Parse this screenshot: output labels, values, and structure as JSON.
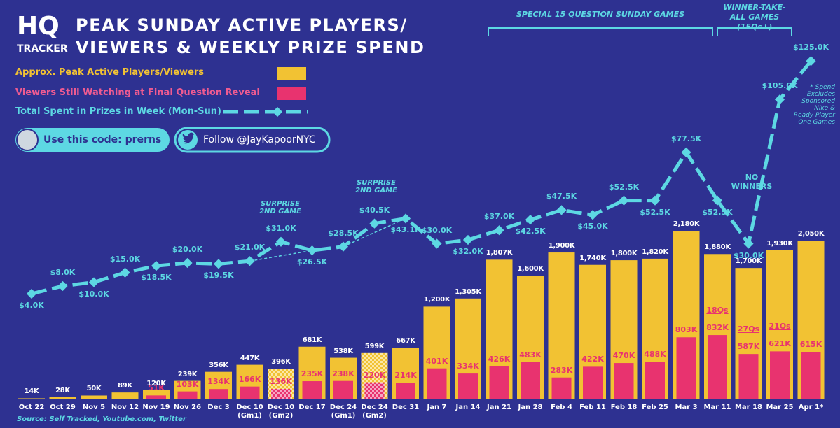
{
  "brand": {
    "logo": "HQ",
    "subtitle": "TRACKER"
  },
  "promo": {
    "code": "Use this code: prerns",
    "follow": "Follow @JayKapoorNYC"
  },
  "chart_data": {
    "type": "bar-line",
    "title": [
      "PEAK SUNDAY ACTIVE PLAYERS/",
      "VIEWERS & WEEKLY PRIZE SPEND"
    ],
    "categories": [
      "Oct 22",
      "Oct 29",
      "Nov 5",
      "Nov 12",
      "Nov 19",
      "Nov 26",
      "Dec 3",
      "Dec 10 (Gm1)",
      "Dec 10 (Gm2)",
      "Dec 17",
      "Dec 24 (Gm1)",
      "Dec 24 (Gm2)",
      "Dec 31",
      "Jan 7",
      "Jan 14",
      "Jan 21",
      "Jan 28",
      "Feb 4",
      "Feb 11",
      "Feb 18",
      "Feb 25",
      "Mar 3",
      "Mar 11",
      "Mar 18",
      "Mar 25",
      "Apr 1*"
    ],
    "series": [
      {
        "name": "Approx. Peak Active Players/Viewers",
        "color": "#f2c233",
        "values": [
          14,
          28,
          50,
          89,
          120,
          239,
          356,
          447,
          396,
          681,
          538,
          599,
          667,
          1200,
          1305,
          1807,
          1600,
          1900,
          1740,
          1800,
          1820,
          2180,
          1880,
          1700,
          1930,
          2050
        ],
        "value_labels": [
          "14K",
          "28K",
          "50K",
          "89K",
          "120K",
          "239K",
          "356K",
          "447K",
          "396K",
          "681K",
          "538K",
          "599K",
          "667K",
          "1,200K",
          "1,305K",
          "1,807K",
          "1,600K",
          "1,900K",
          "1,740K",
          "1,800K",
          "1,820K",
          "2,180K",
          "1,880K",
          "1,700K",
          "1,930K",
          "2,050K"
        ]
      },
      {
        "name": "Viewers Still Watching at Final Question Reveal",
        "color": "#e8336f",
        "values": [
          null,
          null,
          null,
          null,
          51,
          103,
          134,
          166,
          136,
          235,
          238,
          220,
          214,
          401,
          334,
          426,
          483,
          283,
          422,
          470,
          488,
          803,
          832,
          587,
          621,
          615
        ],
        "value_labels": [
          null,
          null,
          null,
          null,
          "51K",
          "103K",
          "134K",
          "166K",
          "136K",
          "235K",
          "238K",
          "220K",
          "214K",
          "401K",
          "334K",
          "426K",
          "483K",
          "283K",
          "422K",
          "470K",
          "488K",
          "803K",
          "832K",
          "587K",
          "621K",
          "615K"
        ]
      },
      {
        "name": "Total Spent in Prizes in Week (Mon-Sun)",
        "color": "#5dd8e3",
        "values": [
          4.0,
          8.0,
          10.0,
          15.0,
          18.5,
          20.0,
          19.5,
          21.0,
          31.0,
          26.5,
          28.5,
          40.5,
          43.1,
          30.0,
          32.0,
          37.0,
          42.5,
          47.5,
          45.0,
          52.5,
          52.5,
          77.5,
          52.5,
          30.0,
          105.0,
          125.0
        ],
        "value_labels": [
          "$4.0K",
          "$8.0K",
          "$10.0K",
          "$15.0K",
          "$18.5K",
          "$20.0K",
          "$19.5K",
          "$21.0K",
          "$31.0K",
          "$26.5K",
          "$28.5K",
          "$40.5K",
          "$43.1K",
          "$30.0K",
          "$32.0K",
          "$37.0K",
          "$42.5K",
          "$47.5K",
          "$45.0K",
          "$52.5K",
          "$52.5K",
          "$77.5K",
          "$52.5K",
          "$30.0K",
          "$105.0K",
          "$125.0K"
        ]
      }
    ],
    "question_labels": [
      null,
      null,
      null,
      null,
      null,
      null,
      null,
      null,
      null,
      null,
      null,
      null,
      null,
      null,
      null,
      null,
      null,
      null,
      null,
      null,
      null,
      null,
      "18Qs",
      "27Qs",
      "21Qs",
      null
    ],
    "annotations": {
      "special_games": "SPECIAL 15 QUESTION SUNDAY GAMES",
      "winner_take_all": "WINNER-TAKE-ALL GAMES (15Qs+)",
      "surprise_1": "SURPRISE 2ND GAME",
      "surprise_2": "SURPRISE 2ND GAME",
      "no_winners": "NO WINNERS",
      "spend_note": "* Spend Excludes Sponsored Nike & Ready Player One Games"
    },
    "source": "Source: Self Tracked, Youtube.com, Twitter",
    "legend": "top-left"
  }
}
